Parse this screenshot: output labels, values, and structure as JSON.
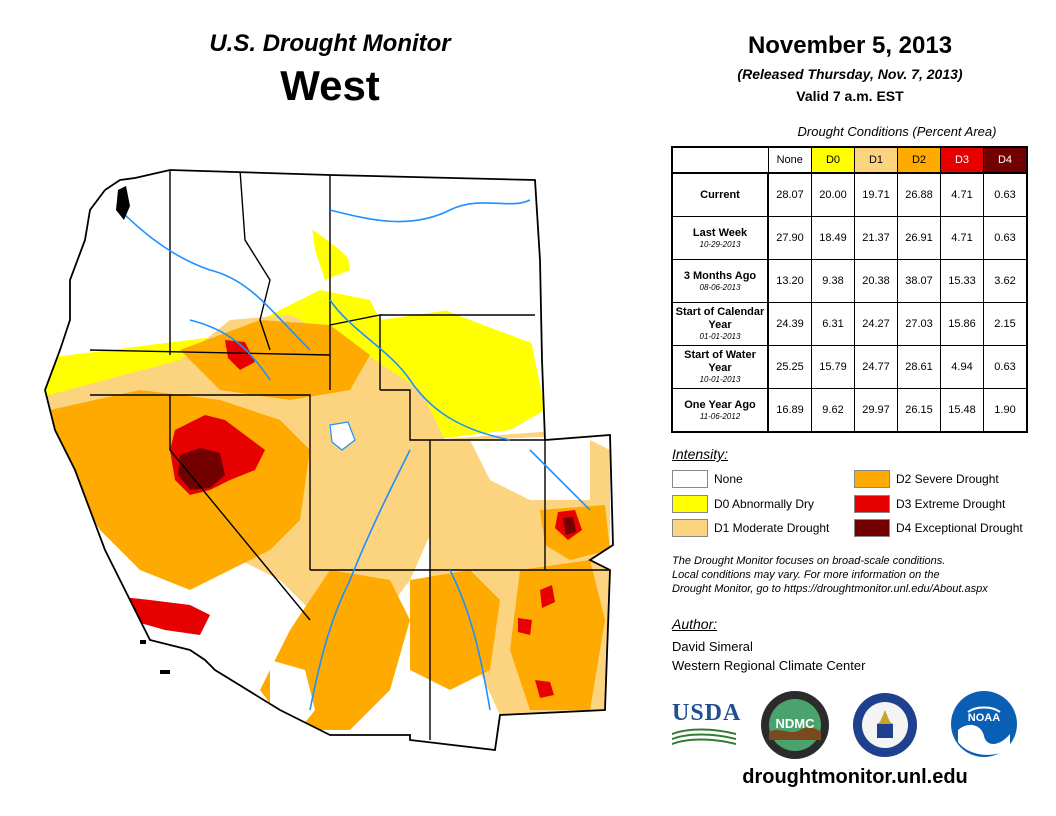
{
  "header": {
    "title": "U.S. Drought Monitor",
    "region": "West",
    "date": "November 5, 2013",
    "released": "(Released Thursday, Nov. 7, 2013)",
    "valid": "Valid 7 a.m. EST"
  },
  "table": {
    "caption": "Drought Conditions (Percent Area)",
    "columns": [
      "None",
      "D0",
      "D1",
      "D2",
      "D3",
      "D4"
    ],
    "column_colors": [
      "#ffffff",
      "#ffff00",
      "#fcd37f",
      "#ffaa00",
      "#e60000",
      "#730000"
    ],
    "rows": [
      {
        "label": "Current",
        "sub": "",
        "values": [
          "28.07",
          "20.00",
          "19.71",
          "26.88",
          "4.71",
          "0.63"
        ]
      },
      {
        "label": "Last Week",
        "sub": "10-29-2013",
        "values": [
          "27.90",
          "18.49",
          "21.37",
          "26.91",
          "4.71",
          "0.63"
        ]
      },
      {
        "label": "3 Months Ago",
        "sub": "08-06-2013",
        "values": [
          "13.20",
          "9.38",
          "20.38",
          "38.07",
          "15.33",
          "3.62"
        ]
      },
      {
        "label": "Start of Calendar Year",
        "sub": "01-01-2013",
        "values": [
          "24.39",
          "6.31",
          "24.27",
          "27.03",
          "15.86",
          "2.15"
        ]
      },
      {
        "label": "Start of Water Year",
        "sub": "10-01-2013",
        "values": [
          "25.25",
          "15.79",
          "24.77",
          "28.61",
          "4.94",
          "0.63"
        ]
      },
      {
        "label": "One Year Ago",
        "sub": "11-06-2012",
        "values": [
          "16.89",
          "9.62",
          "29.97",
          "26.15",
          "15.48",
          "1.90"
        ]
      }
    ]
  },
  "legend": {
    "heading": "Intensity:",
    "items": [
      {
        "label": "None",
        "color": "#ffffff"
      },
      {
        "label": "D0 Abnormally Dry",
        "color": "#ffff00"
      },
      {
        "label": "D1 Moderate Drought",
        "color": "#fcd37f"
      },
      {
        "label": "D2 Severe Drought",
        "color": "#ffaa00"
      },
      {
        "label": "D3 Extreme Drought",
        "color": "#e60000"
      },
      {
        "label": "D4 Exceptional Drought",
        "color": "#730000"
      }
    ]
  },
  "note": {
    "line1": "The Drought Monitor focuses on broad-scale conditions.",
    "line2": "Local conditions may vary. For more information on the",
    "line3": "Drought Monitor, go to https://droughtmonitor.unl.edu/About.aspx"
  },
  "author": {
    "heading": "Author:",
    "name": "David Simeral",
    "org": "Western Regional Climate Center"
  },
  "logos": {
    "usda": "USDA",
    "ndmc": "NDMC",
    "noaa": "NOAA"
  },
  "footer": {
    "url": "droughtmonitor.unl.edu"
  }
}
